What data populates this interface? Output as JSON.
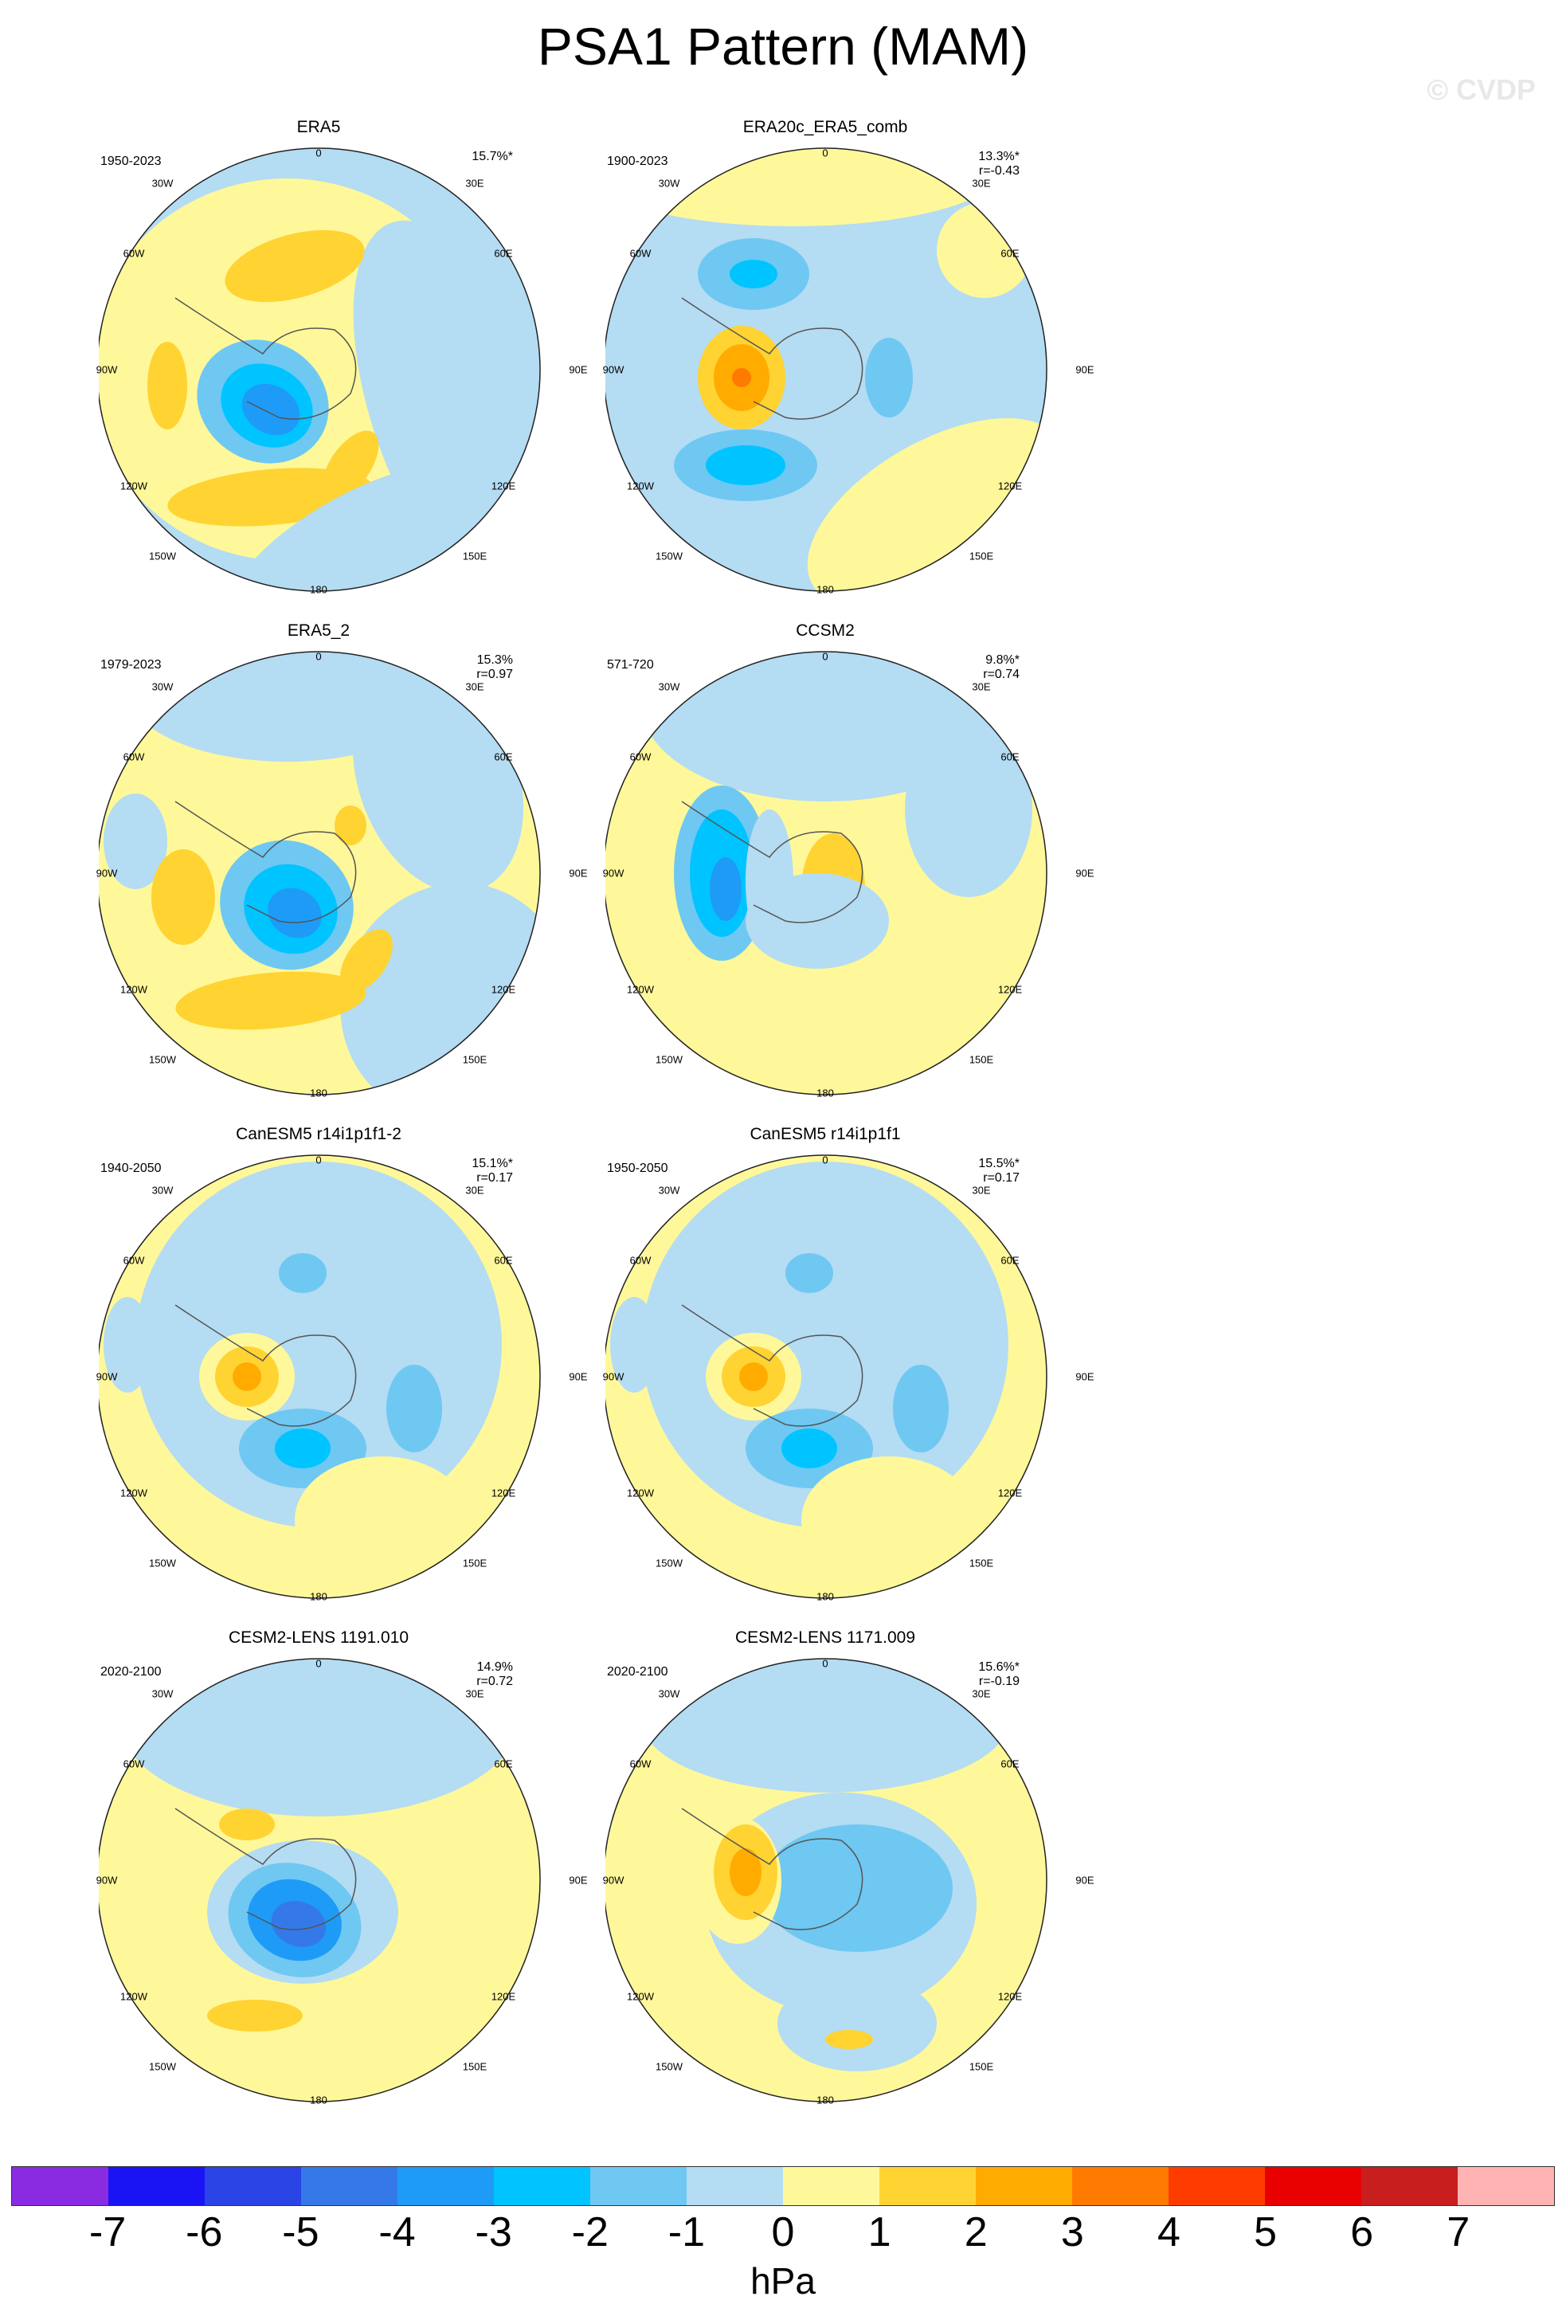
{
  "figure": {
    "title": "PSA1 Pattern (MAM)",
    "watermark": "© CVDP",
    "units": "hPa"
  },
  "map_labels": {
    "top": "0",
    "tr1": "30E",
    "tr2": "60E",
    "right": "90E",
    "br1": "120E",
    "br2": "150E",
    "bottom": "180",
    "bl2": "150W",
    "bl1": "120W",
    "left": "90W",
    "tl2": "60W",
    "tl1": "30W"
  },
  "panels": [
    {
      "title": "ERA5",
      "period": "1950-2023",
      "stat1": "15.7%*",
      "stat2": ""
    },
    {
      "title": "ERA20c_ERA5_comb",
      "period": "1900-2023",
      "stat1": "13.3%*",
      "stat2": "r=-0.43"
    },
    {
      "title": "ERA5_2",
      "period": "1979-2023",
      "stat1": "15.3%",
      "stat2": "r=0.97"
    },
    {
      "title": "CCSM2",
      "period": "571-720",
      "stat1": "9.8%*",
      "stat2": "r=0.74"
    },
    {
      "title": "CanESM5 r14i1p1f1-2",
      "period": "1940-2050",
      "stat1": "15.1%*",
      "stat2": "r=0.17"
    },
    {
      "title": "CanESM5 r14i1p1f1",
      "period": "1950-2050",
      "stat1": "15.5%*",
      "stat2": "r=0.17"
    },
    {
      "title": "CESM2-LENS 1191.010",
      "period": "2020-2100",
      "stat1": "14.9%",
      "stat2": "r=0.72"
    },
    {
      "title": "CESM2-LENS 1171.009",
      "period": "2020-2100",
      "stat1": "15.6%*",
      "stat2": "r=-0.19"
    }
  ],
  "colorbar": {
    "colors": [
      "#8a2be2",
      "#1a14f5",
      "#2a44e6",
      "#3579e8",
      "#1e9bf7",
      "#00c4ff",
      "#6ec8f2",
      "#b4dcf3",
      "#fff89a",
      "#ffd332",
      "#ffab00",
      "#ff7a00",
      "#ff3c00",
      "#e80000",
      "#c81e1e",
      "#ffb3b3"
    ],
    "ticks": [
      "-7",
      "-6",
      "-5",
      "-4",
      "-3",
      "-2",
      "-1",
      "0",
      "1",
      "2",
      "3",
      "4",
      "5",
      "6",
      "7"
    ]
  }
}
